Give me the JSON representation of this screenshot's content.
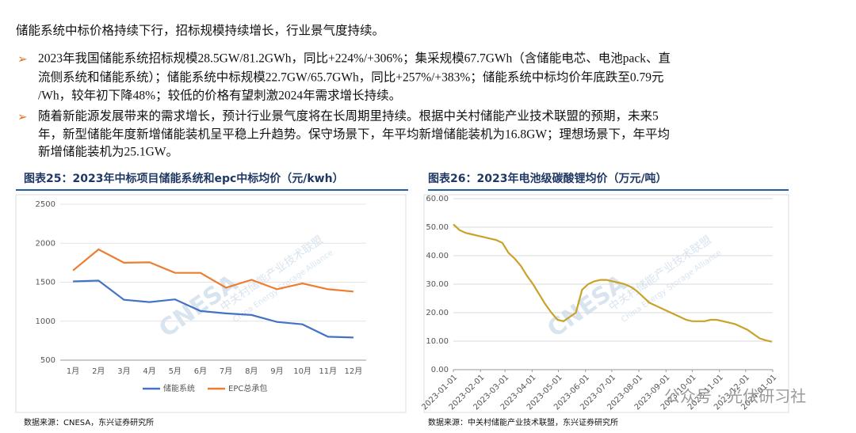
{
  "header": {
    "title": "储能系统中标价格持续下行，招标规模持续增长，行业景气度持续。"
  },
  "bullets": [
    {
      "lines": [
        "2023年我国储能系统招标规模28.5GW/81.2GWh，同比+224%/+306%；集采规模67.7GWh（含储能电芯、电池pack、直",
        "流侧系统和储能系统）；储能系统中标规模22.7GW/65.7GWh，同比+257%/+383%；储能系统中标均价年底跌至0.79元",
        "/Wh，较年初下降48%；较低的价格有望刺激2024年需求增长持续。"
      ]
    },
    {
      "lines": [
        "随着新能源发展带来的需求增长，预计行业景气度将在长周期里持续。根据中关村储能产业技术联盟的预期，未来5",
        "年，新型储能年度新增储能装机呈平稳上升趋势。保守场景下，年平均新增储能装机为16.8GW；理想场景下，年平均",
        "新增储能装机为25.1GW。"
      ]
    }
  ],
  "watermark": {
    "logo": "CNESA",
    "cn": "中关村储能产业技术联盟",
    "en": "China Energy Storage Alliance",
    "account": "公众号 · 光伏研习社"
  },
  "chart_data": [
    {
      "type": "line",
      "title": "图表25：2023年中标项目储能系统和epc中标均价（元/kwh）",
      "categories": [
        "1月",
        "2月",
        "3月",
        "4月",
        "5月",
        "6月",
        "7月",
        "8月",
        "9月",
        "10月",
        "11月",
        "12月"
      ],
      "series": [
        {
          "name": "储能系统",
          "color": "#4472c4",
          "values": [
            1510,
            1520,
            1275,
            1245,
            1280,
            1130,
            1100,
            1080,
            990,
            960,
            800,
            790
          ]
        },
        {
          "name": "EPC总承包",
          "color": "#ed7d31",
          "values": [
            1650,
            1920,
            1750,
            1755,
            1620,
            1620,
            1430,
            1530,
            1410,
            1485,
            1410,
            1380
          ]
        }
      ],
      "ylim": [
        500,
        2500
      ],
      "yticks": [
        500,
        1000,
        1500,
        2000,
        2500
      ],
      "legend": "bottom",
      "source": "数据来源：CNESA，东兴证券研究所"
    },
    {
      "type": "line",
      "title": "图表26：2023年电池级碳酸锂均价（万元/吨）",
      "color": "#c9a227",
      "x": [
        "2023-01-01",
        "2023-01-08",
        "2023-01-15",
        "2023-01-22",
        "2023-01-29",
        "2023-02-05",
        "2023-02-12",
        "2023-02-19",
        "2023-02-26",
        "2023-03-05",
        "2023-03-12",
        "2023-03-19",
        "2023-03-26",
        "2023-04-02",
        "2023-04-09",
        "2023-04-16",
        "2023-04-23",
        "2023-04-30",
        "2023-05-07",
        "2023-05-14",
        "2023-05-21",
        "2023-05-28",
        "2023-06-04",
        "2023-06-11",
        "2023-06-18",
        "2023-06-25",
        "2023-07-02",
        "2023-07-09",
        "2023-07-16",
        "2023-07-23",
        "2023-07-30",
        "2023-08-06",
        "2023-08-13",
        "2023-08-20",
        "2023-08-27",
        "2023-09-03",
        "2023-09-10",
        "2023-09-17",
        "2023-09-24",
        "2023-10-01",
        "2023-10-08",
        "2023-10-15",
        "2023-10-22",
        "2023-10-29",
        "2023-11-05",
        "2023-11-12",
        "2023-11-19",
        "2023-11-26",
        "2023-12-03",
        "2023-12-10",
        "2023-12-17",
        "2023-12-24",
        "2023-12-31"
      ],
      "values": [
        51,
        49,
        48,
        47.5,
        47,
        46.5,
        46,
        45.5,
        44.5,
        41,
        39,
        36.5,
        33,
        30,
        26.5,
        23,
        20,
        17.5,
        17,
        18.5,
        20,
        28,
        30,
        31,
        31.5,
        31.5,
        31,
        30.5,
        30,
        29,
        27.5,
        25.5,
        23.5,
        22.5,
        21.5,
        20.5,
        19.5,
        18.5,
        17.5,
        17,
        17,
        17,
        17.5,
        17.5,
        17,
        16.5,
        16,
        15,
        14,
        12.5,
        11,
        10.3,
        9.8
      ],
      "xlim": [
        "2023-01-01",
        "2024-01-01"
      ],
      "xticks": [
        "2023-01-01",
        "2023-02-01",
        "2023-03-01",
        "2023-04-01",
        "2023-05-01",
        "2023-06-01",
        "2023-07-01",
        "2023-08-01",
        "2023-09-01",
        "2023-10-01",
        "2023-11-01",
        "2023-12-01",
        "2024-01-01"
      ],
      "ylim": [
        0,
        60
      ],
      "yticks": [
        {
          "value": 0,
          "label": "0.00"
        },
        {
          "value": 10,
          "label": "10.00"
        },
        {
          "value": 20,
          "label": "20.00"
        },
        {
          "value": 30,
          "label": "30.00"
        },
        {
          "value": 40,
          "label": "40.00"
        },
        {
          "value": 50,
          "label": "50.00"
        },
        {
          "value": 60,
          "label": "60.00"
        }
      ],
      "source": "数据来源：中关村储能产业技术联盟，东兴证券研究所"
    }
  ]
}
